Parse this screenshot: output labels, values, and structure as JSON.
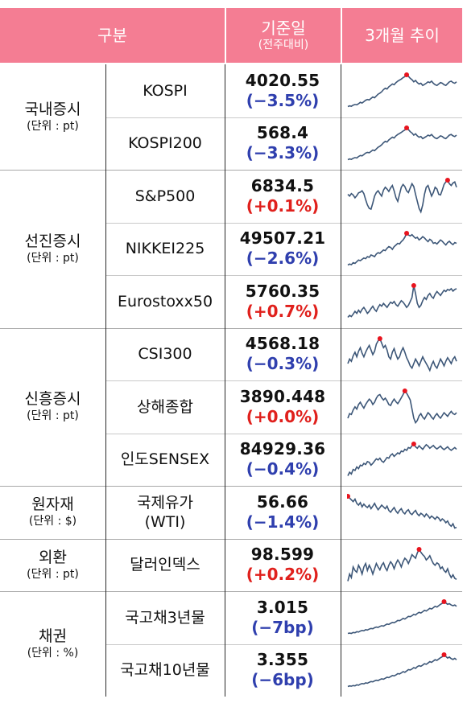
{
  "header": {
    "category": "구분",
    "base_date": "기준일",
    "base_date_sub": "(전주대비)",
    "trend": "3개월 추이"
  },
  "groups": [
    {
      "name": "국내증시",
      "unit": "(단위 : pt)",
      "rows": [
        {
          "index": "KOSPI",
          "value": "4020.55",
          "change": "(−3.5%)",
          "dir": "neg",
          "trend": [
            10,
            12,
            11,
            14,
            16,
            15,
            18,
            22,
            20,
            24,
            28,
            30,
            29,
            33,
            37,
            35,
            40,
            45,
            48,
            52,
            58,
            62,
            60,
            66,
            70,
            74,
            72,
            78,
            82,
            85,
            88,
            92,
            95,
            100,
            96,
            90,
            86,
            80,
            84,
            78,
            74,
            76,
            70,
            73,
            76,
            80,
            78,
            82,
            76,
            72,
            70,
            74,
            78,
            76,
            72,
            70,
            75,
            80,
            82,
            78,
            76,
            80
          ]
        },
        {
          "index": "KOSPI200",
          "value": "568.4",
          "change": "(−3.3%)",
          "dir": "neg",
          "trend": [
            8,
            10,
            9,
            12,
            14,
            13,
            17,
            20,
            19,
            23,
            27,
            29,
            28,
            32,
            36,
            34,
            39,
            44,
            47,
            51,
            57,
            61,
            59,
            65,
            69,
            73,
            71,
            77,
            81,
            84,
            87,
            91,
            94,
            100,
            95,
            89,
            85,
            79,
            83,
            77,
            73,
            75,
            69,
            72,
            75,
            79,
            77,
            81,
            75,
            71,
            69,
            73,
            77,
            75,
            71,
            69,
            74,
            79,
            81,
            77,
            75,
            79
          ]
        }
      ]
    },
    {
      "name": "선진증시",
      "unit": "(단위 : pt)",
      "rows": [
        {
          "index": "S&P500",
          "value": "6834.5",
          "change": "(+0.1%)",
          "dir": "pos",
          "trend": [
            60,
            55,
            62,
            58,
            50,
            56,
            64,
            66,
            70,
            62,
            45,
            30,
            20,
            18,
            35,
            55,
            65,
            70,
            62,
            55,
            72,
            80,
            75,
            68,
            78,
            85,
            70,
            50,
            40,
            60,
            80,
            88,
            82,
            70,
            65,
            78,
            90,
            82,
            60,
            40,
            20,
            10,
            30,
            60,
            80,
            85,
            70,
            55,
            65,
            80,
            75,
            60,
            58,
            72,
            88,
            95,
            100,
            90,
            85,
            92,
            95,
            80
          ]
        },
        {
          "index": "NIKKEI225",
          "value": "49507.21",
          "change": "(−2.6%)",
          "dir": "neg",
          "trend": [
            5,
            8,
            6,
            12,
            10,
            15,
            20,
            18,
            22,
            26,
            24,
            30,
            28,
            35,
            33,
            30,
            38,
            42,
            40,
            45,
            50,
            48,
            55,
            60,
            58,
            52,
            60,
            65,
            70,
            68,
            75,
            80,
            88,
            100,
            95,
            92,
            96,
            90,
            85,
            88,
            80,
            84,
            90,
            86,
            80,
            75,
            82,
            78,
            70,
            72,
            68,
            74,
            80,
            76,
            70,
            65,
            72,
            76,
            70,
            66,
            72,
            70
          ]
        },
        {
          "index": "Eurostoxx50",
          "value": "5760.35",
          "change": "(+0.7%)",
          "dir": "pos",
          "trend": [
            20,
            25,
            22,
            28,
            35,
            30,
            38,
            32,
            40,
            45,
            38,
            30,
            35,
            42,
            48,
            40,
            35,
            45,
            52,
            48,
            55,
            50,
            45,
            52,
            58,
            55,
            60,
            52,
            48,
            55,
            62,
            58,
            52,
            45,
            50,
            60,
            70,
            100,
            80,
            55,
            45,
            50,
            62,
            70,
            65,
            75,
            80,
            72,
            68,
            78,
            85,
            80,
            75,
            82,
            88,
            85,
            90,
            88,
            92,
            86,
            90,
            92
          ]
        }
      ]
    },
    {
      "name": "신흥증시",
      "unit": "(단위 : pt)",
      "rows": [
        {
          "index": "CSI300",
          "value": "4568.18",
          "change": "(−0.3%)",
          "dir": "neg",
          "trend": [
            45,
            55,
            50,
            62,
            70,
            60,
            72,
            80,
            68,
            60,
            70,
            78,
            85,
            75,
            65,
            72,
            88,
            95,
            100,
            90,
            80,
            85,
            75,
            60,
            55,
            70,
            78,
            65,
            55,
            60,
            72,
            80,
            70,
            58,
            50,
            40,
            35,
            45,
            55,
            48,
            40,
            50,
            60,
            52,
            45,
            38,
            30,
            42,
            50,
            40,
            35,
            45,
            55,
            48,
            40,
            50,
            58,
            52,
            45,
            55,
            60,
            50
          ]
        },
        {
          "index": "상해종합",
          "value": "3890.448",
          "change": "(+0.0%)",
          "dir": "pos",
          "trend": [
            40,
            50,
            48,
            58,
            65,
            60,
            70,
            75,
            68,
            62,
            70,
            76,
            82,
            78,
            70,
            75,
            84,
            90,
            92,
            85,
            80,
            84,
            78,
            70,
            68,
            76,
            82,
            76,
            72,
            78,
            85,
            92,
            100,
            95,
            88,
            80,
            60,
            40,
            30,
            35,
            45,
            50,
            42,
            38,
            45,
            52,
            48,
            42,
            38,
            45,
            50,
            44,
            40,
            46,
            52,
            48,
            44,
            50,
            55,
            50,
            48,
            52
          ]
        },
        {
          "index": "인도SENSEX",
          "value": "84929.36",
          "change": "(−0.4%)",
          "dir": "neg",
          "trend": [
            10,
            20,
            15,
            28,
            25,
            35,
            30,
            40,
            38,
            45,
            42,
            50,
            48,
            40,
            45,
            52,
            58,
            55,
            60,
            52,
            48,
            55,
            62,
            60,
            68,
            72,
            65,
            70,
            75,
            72,
            80,
            78,
            85,
            82,
            90,
            88,
            95,
            100,
            92,
            88,
            95,
            90,
            85,
            92,
            98,
            94,
            88,
            92,
            96,
            90,
            86,
            90,
            94,
            88,
            84,
            88,
            92,
            86,
            82,
            86,
            90,
            85
          ]
        }
      ]
    },
    {
      "name": "원자재",
      "unit": "(단위 : $)",
      "rows": [
        {
          "index": "국제유가",
          "index2": "(WTI)",
          "value": "56.66",
          "change": "(−1.4%)",
          "dir": "neg",
          "trend": [
            100,
            95,
            90,
            85,
            92,
            80,
            75,
            82,
            70,
            78,
            72,
            68,
            75,
            65,
            72,
            80,
            70,
            62,
            68,
            75,
            70,
            65,
            72,
            60,
            55,
            62,
            68,
            58,
            52,
            60,
            65,
            55,
            50,
            58,
            62,
            52,
            48,
            55,
            60,
            50,
            45,
            52,
            48,
            42,
            50,
            45,
            38,
            44,
            40,
            35,
            42,
            38,
            30,
            36,
            32,
            25,
            30,
            20,
            15,
            22,
            10,
            12
          ]
        }
      ]
    },
    {
      "name": "외환",
      "unit": "(단위 : pt)",
      "rows": [
        {
          "index": "달러인덱스",
          "value": "98.599",
          "change": "(+0.2%)",
          "dir": "pos",
          "trend": [
            10,
            30,
            20,
            50,
            40,
            35,
            55,
            45,
            30,
            50,
            60,
            40,
            55,
            45,
            30,
            45,
            60,
            50,
            42,
            55,
            62,
            48,
            40,
            55,
            65,
            58,
            45,
            60,
            70,
            62,
            50,
            65,
            75,
            70,
            60,
            72,
            85,
            80,
            75,
            90,
            100,
            92,
            85,
            80,
            70,
            75,
            82,
            70,
            60,
            55,
            62,
            58,
            45,
            50,
            40,
            35,
            45,
            30,
            20,
            28,
            18,
            15
          ]
        }
      ]
    },
    {
      "name": "채권",
      "unit": "(단위 : %)",
      "rows": [
        {
          "index": "국고채3년물",
          "value": "3.015",
          "change": "(−7bp)",
          "dir": "neg",
          "trend": [
            5,
            6,
            5,
            8,
            7,
            10,
            9,
            12,
            14,
            13,
            16,
            15,
            18,
            20,
            19,
            22,
            24,
            23,
            26,
            28,
            27,
            30,
            33,
            32,
            35,
            38,
            37,
            40,
            44,
            43,
            46,
            50,
            48,
            52,
            56,
            55,
            58,
            62,
            60,
            65,
            68,
            66,
            70,
            74,
            72,
            76,
            80,
            78,
            82,
            86,
            84,
            88,
            92,
            95,
            100,
            96,
            92,
            94,
            90,
            88,
            90,
            86
          ]
        },
        {
          "index": "국고채10년물",
          "value": "3.355",
          "change": "(−6bp)",
          "dir": "neg",
          "trend": [
            4,
            6,
            5,
            7,
            6,
            9,
            8,
            11,
            13,
            12,
            15,
            14,
            17,
            19,
            18,
            21,
            23,
            22,
            25,
            27,
            26,
            29,
            32,
            31,
            34,
            37,
            36,
            39,
            43,
            42,
            45,
            49,
            47,
            51,
            55,
            54,
            57,
            61,
            59,
            64,
            67,
            65,
            69,
            73,
            71,
            75,
            79,
            77,
            81,
            85,
            83,
            87,
            91,
            94,
            100,
            95,
            90,
            93,
            88,
            86,
            89,
            85
          ]
        }
      ]
    }
  ]
}
